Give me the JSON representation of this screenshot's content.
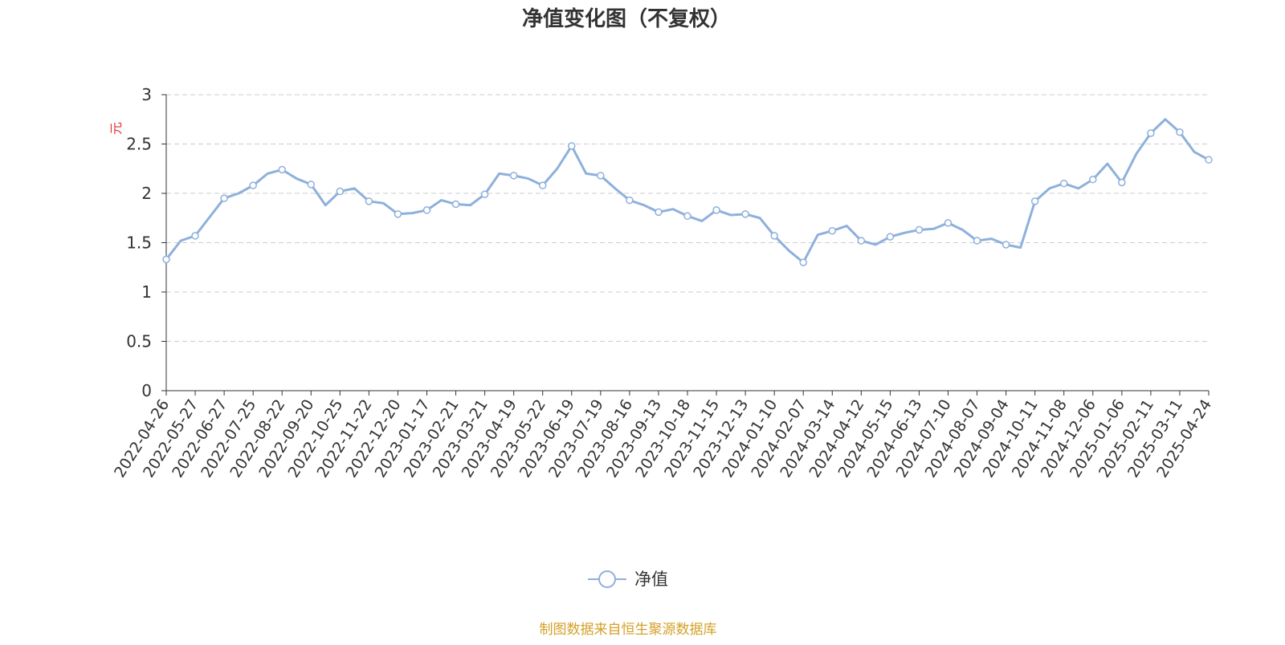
{
  "chart_data": {
    "type": "line",
    "title": "净值变化图（不复权）",
    "y_axis_label": "元",
    "source": "制图数据来自恒生聚源数据库",
    "categories": [
      "2022-04-26",
      null,
      "2022-05-27",
      null,
      "2022-06-27",
      null,
      "2022-07-25",
      null,
      "2022-08-22",
      null,
      "2022-09-20",
      null,
      "2022-10-25",
      null,
      "2022-11-22",
      null,
      "2022-12-20",
      null,
      "2023-01-17",
      null,
      "2023-02-21",
      null,
      "2023-03-21",
      null,
      "2023-04-19",
      null,
      "2023-05-22",
      null,
      "2023-06-19",
      null,
      "2023-07-19",
      null,
      "2023-08-16",
      null,
      "2023-09-13",
      null,
      "2023-10-18",
      null,
      "2023-11-15",
      null,
      "2023-12-13",
      null,
      "2024-01-10",
      null,
      "2024-02-07",
      null,
      "2024-03-14",
      null,
      "2024-04-12",
      null,
      "2024-05-15",
      null,
      "2024-06-13",
      null,
      "2024-07-10",
      null,
      "2024-08-07",
      null,
      "2024-09-04",
      null,
      "2024-10-11",
      null,
      "2024-11-08",
      null,
      "2024-12-06",
      null,
      "2025-01-06",
      null,
      "2025-02-11",
      null,
      "2025-03-11",
      null,
      "2025-04-24"
    ],
    "series": [
      {
        "name": "净值",
        "color": "#8eb0dc",
        "values": [
          1.33,
          1.52,
          1.57,
          1.76,
          1.95,
          2.0,
          2.08,
          2.2,
          2.24,
          2.15,
          2.09,
          1.88,
          2.02,
          2.05,
          1.92,
          1.9,
          1.79,
          1.8,
          1.83,
          1.93,
          1.89,
          1.88,
          1.99,
          2.2,
          2.18,
          2.15,
          2.08,
          2.25,
          2.48,
          2.2,
          2.18,
          2.05,
          1.93,
          1.88,
          1.81,
          1.84,
          1.77,
          1.72,
          1.83,
          1.78,
          1.79,
          1.75,
          1.57,
          1.42,
          1.3,
          1.58,
          1.62,
          1.67,
          1.52,
          1.48,
          1.56,
          1.6,
          1.63,
          1.64,
          1.7,
          1.63,
          1.52,
          1.54,
          1.48,
          1.45,
          1.92,
          2.05,
          2.1,
          2.05,
          2.14,
          2.3,
          2.11,
          2.4,
          2.61,
          2.75,
          2.62,
          2.42,
          2.34
        ]
      }
    ],
    "ylim": [
      0,
      3
    ],
    "yticks": [
      0,
      0.5,
      1,
      1.5,
      2,
      2.5,
      3
    ],
    "grid": true
  }
}
